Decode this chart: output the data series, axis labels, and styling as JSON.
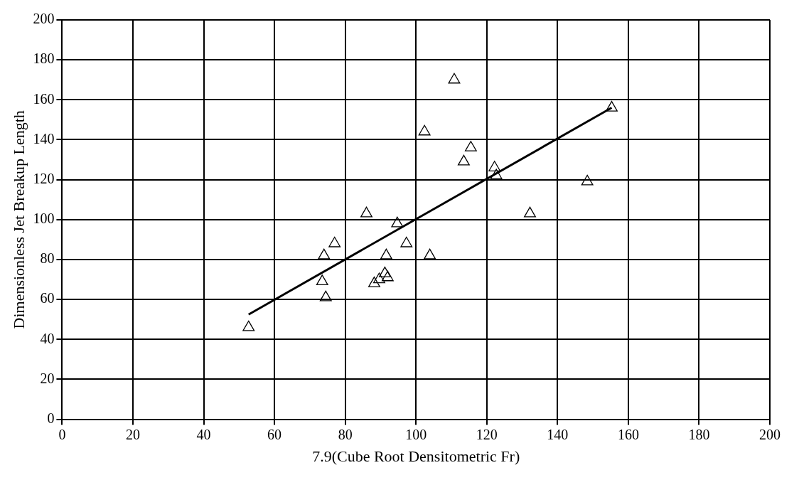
{
  "chart_data": {
    "type": "scatter",
    "xlabel": "7.9(Cube Root Densitometric Fr)",
    "ylabel": "Dimensionless Jet Breakup Length",
    "xlim": [
      0,
      200
    ],
    "ylim": [
      0,
      200
    ],
    "xticks": [
      0,
      20,
      40,
      60,
      80,
      100,
      120,
      140,
      160,
      180,
      200
    ],
    "yticks": [
      0,
      20,
      40,
      60,
      80,
      100,
      120,
      140,
      160,
      180,
      200
    ],
    "grid": true,
    "legend": false,
    "series": [
      {
        "type": "scatter",
        "color": "#000000",
        "marker": "triangle",
        "x": [
          52.7,
          73.5,
          74.5,
          74,
          77,
          86,
          94.7,
          97.3,
          91.6,
          103.9,
          88.2,
          89.6,
          91.2,
          92,
          102.4,
          110.8,
          115.5,
          113.5,
          122.2,
          122.7,
          148.4,
          132.2,
          155.3
        ],
        "values": [
          46,
          69,
          61,
          82,
          88,
          103,
          98,
          88,
          82,
          82,
          68,
          70,
          73,
          71,
          144,
          170,
          136,
          129,
          126,
          122,
          119,
          103,
          156
        ]
      },
      {
        "type": "line",
        "color": "#000000",
        "marker": "none",
        "line_style": "solid",
        "x": [
          52.7,
          155.3
        ],
        "values": [
          52.5,
          156
        ]
      }
    ]
  }
}
